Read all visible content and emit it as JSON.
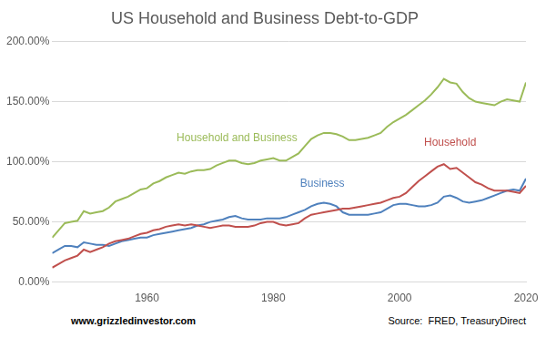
{
  "chart_data": {
    "type": "line",
    "title": "US Household and Business Debt-to-GDP",
    "notes": [
      "www.grizzledinvestor.com",
      "Source:  FRED, TreasuryDirect"
    ],
    "x": [
      1945,
      1946,
      1947,
      1948,
      1949,
      1950,
      1951,
      1952,
      1953,
      1954,
      1955,
      1956,
      1957,
      1958,
      1959,
      1960,
      1961,
      1962,
      1963,
      1964,
      1965,
      1966,
      1967,
      1968,
      1969,
      1970,
      1971,
      1972,
      1973,
      1974,
      1975,
      1976,
      1977,
      1978,
      1979,
      1980,
      1981,
      1982,
      1983,
      1984,
      1985,
      1986,
      1987,
      1988,
      1989,
      1990,
      1991,
      1992,
      1993,
      1994,
      1995,
      1996,
      1997,
      1998,
      1999,
      2000,
      2001,
      2002,
      2003,
      2004,
      2005,
      2006,
      2007,
      2008,
      2009,
      2010,
      2011,
      2012,
      2013,
      2014,
      2015,
      2016,
      2017,
      2018,
      2019,
      2020
    ],
    "series": [
      {
        "name": "Household and Business",
        "color": "#9bbb59",
        "values": [
          37,
          43,
          49,
          50,
          51,
          59,
          57,
          58,
          59,
          62,
          67,
          69,
          71,
          74,
          77,
          78,
          82,
          84,
          87,
          89,
          91,
          90,
          92,
          93,
          93,
          94,
          97,
          99,
          101,
          101,
          99,
          98,
          99,
          101,
          102,
          103,
          101,
          101,
          104,
          107,
          113,
          119,
          122,
          124,
          124,
          123,
          121,
          118,
          118,
          119,
          120,
          122,
          124,
          129,
          133,
          136,
          139,
          143,
          147,
          151,
          156,
          162,
          169,
          166,
          165,
          158,
          153,
          150,
          149,
          148,
          147,
          150,
          152,
          151,
          150,
          166
        ]
      },
      {
        "name": "Household",
        "color": "#c0504d",
        "values": [
          12,
          15,
          18,
          20,
          22,
          27,
          25,
          27,
          29,
          32,
          34,
          35,
          36,
          38,
          40,
          41,
          43,
          44,
          46,
          47,
          48,
          47,
          48,
          47,
          46,
          45,
          46,
          47,
          47,
          46,
          46,
          46,
          47,
          49,
          50,
          50,
          48,
          47,
          48,
          49,
          53,
          56,
          57,
          58,
          59,
          60,
          61,
          61,
          62,
          63,
          64,
          65,
          66,
          68,
          70,
          71,
          74,
          79,
          84,
          88,
          92,
          96,
          98,
          94,
          95,
          91,
          87,
          83,
          81,
          78,
          76,
          76,
          76,
          75,
          74,
          80
        ]
      },
      {
        "name": "Business",
        "color": "#4f81bd",
        "values": [
          24,
          27,
          30,
          30,
          29,
          33,
          32,
          31,
          31,
          30,
          32,
          34,
          35,
          36,
          37,
          37,
          39,
          40,
          41,
          42,
          43,
          44,
          45,
          47,
          48,
          50,
          51,
          52,
          54,
          55,
          53,
          52,
          52,
          52,
          53,
          53,
          53,
          54,
          56,
          58,
          60,
          63,
          65,
          66,
          65,
          63,
          58,
          56,
          56,
          56,
          56,
          57,
          58,
          61,
          64,
          65,
          65,
          64,
          63,
          63,
          64,
          66,
          71,
          72,
          70,
          67,
          66,
          67,
          68,
          70,
          72,
          74,
          76,
          77,
          76,
          86
        ]
      }
    ],
    "xlim": [
      1945,
      2020
    ],
    "xticks": [
      1960,
      1980,
      2000,
      2020
    ],
    "ylim": [
      0,
      200
    ],
    "yticks": [
      {
        "value": 0,
        "label": "0.00%"
      },
      {
        "value": 50,
        "label": "50.00%"
      },
      {
        "value": 100,
        "label": "100.00%"
      },
      {
        "value": 150,
        "label": "150.00%"
      },
      {
        "value": 200,
        "label": "200.00%"
      }
    ],
    "grid": true
  }
}
